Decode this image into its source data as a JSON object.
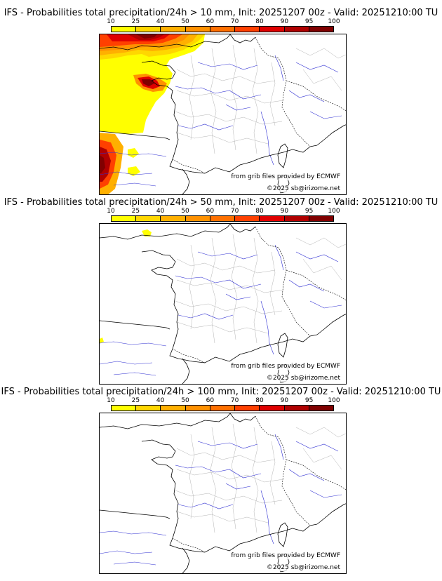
{
  "panels": [
    {
      "title": "IFS - Probabilities total precipitation/24h > 10 mm, Init: 20251207 00z - Valid: 20251210:00 TU",
      "source_label": "from grib files provided by ECMWF",
      "copyright_label": "©2025 sb@irizome.net"
    },
    {
      "title": "IFS - Probabilities total precipitation/24h > 50 mm, Init: 20251207 00z - Valid: 20251210:00 TU",
      "source_label": "from grib files provided by ECMWF",
      "copyright_label": "©2025 sb@irizome.net"
    },
    {
      "title": "IFS - Probabilities total precipitation/24h > 100 mm, Init: 20251207 00z - Valid: 20251210:00 TU",
      "source_label": "from grib files provided by ECMWF",
      "copyright_label": "©2025 sb@irizome.net"
    }
  ],
  "colorbar": {
    "ticks": [
      "10",
      "25",
      "40",
      "50",
      "60",
      "70",
      "80",
      "90",
      "95",
      "100"
    ],
    "colors": [
      "#ffff00",
      "#ffd700",
      "#ffb000",
      "#ff9100",
      "#ff7000",
      "#ff4000",
      "#e00000",
      "#b00000",
      "#800000"
    ]
  }
}
